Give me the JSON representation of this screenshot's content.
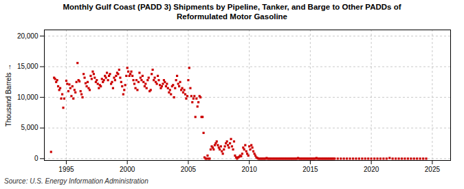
{
  "chart_data": {
    "type": "scatter",
    "title": "Monthly Gulf Coast (PADD 3) Shipments by Pipeline, Tanker, and Barge to Other PADDs of\nReformulated Motor Gasoline",
    "ylabel": "Thousand Barrels",
    "annotations": [
      "Source: U.S. Energy Information Administration"
    ],
    "color": "#cc0000",
    "marker": "square",
    "grid": true,
    "xlim": [
      1993.2,
      2026.5
    ],
    "ylim": [
      -300,
      21000
    ],
    "xticks": [
      1995,
      2000,
      2005,
      2010,
      2015,
      2020,
      2025
    ],
    "yticks": [
      0,
      {
        "value": 5000,
        "label": "5,000"
      },
      {
        "value": 10000,
        "label": "10,000"
      },
      {
        "value": 15000,
        "label": "15,000"
      },
      {
        "value": 20000,
        "label": "20,000"
      }
    ],
    "x": [
      1993.75,
      1994.0,
      1994.08,
      1994.17,
      1994.25,
      1994.33,
      1994.42,
      1994.5,
      1994.58,
      1994.67,
      1994.75,
      1994.83,
      1995.0,
      1995.08,
      1995.17,
      1995.25,
      1995.33,
      1995.42,
      1995.5,
      1995.58,
      1995.67,
      1995.75,
      1995.83,
      1995.92,
      1996.0,
      1996.08,
      1996.17,
      1996.25,
      1996.33,
      1996.42,
      1996.5,
      1996.58,
      1996.67,
      1996.75,
      1996.83,
      1996.92,
      1997.0,
      1997.08,
      1997.17,
      1997.25,
      1997.33,
      1997.42,
      1997.5,
      1997.58,
      1997.67,
      1997.75,
      1997.83,
      1997.92,
      1998.0,
      1998.08,
      1998.17,
      1998.25,
      1998.33,
      1998.42,
      1998.5,
      1998.58,
      1998.67,
      1998.75,
      1998.83,
      1998.92,
      1999.0,
      1999.08,
      1999.17,
      1999.25,
      1999.33,
      1999.42,
      1999.5,
      1999.58,
      1999.67,
      1999.75,
      1999.83,
      1999.92,
      2000.0,
      2000.08,
      2000.17,
      2000.25,
      2000.33,
      2000.42,
      2000.5,
      2000.58,
      2000.67,
      2000.75,
      2000.83,
      2000.92,
      2001.0,
      2001.08,
      2001.17,
      2001.25,
      2001.33,
      2001.42,
      2001.5,
      2001.58,
      2001.67,
      2001.75,
      2001.83,
      2001.92,
      2002.0,
      2002.08,
      2002.17,
      2002.25,
      2002.33,
      2002.42,
      2002.5,
      2002.58,
      2002.67,
      2002.75,
      2002.83,
      2002.92,
      2003.0,
      2003.08,
      2003.17,
      2003.25,
      2003.33,
      2003.42,
      2003.5,
      2003.58,
      2003.67,
      2003.75,
      2003.83,
      2003.92,
      2004.0,
      2004.08,
      2004.17,
      2004.25,
      2004.33,
      2004.42,
      2004.5,
      2004.58,
      2004.67,
      2004.75,
      2004.83,
      2004.92,
      2005.0,
      2005.08,
      2005.17,
      2005.25,
      2005.33,
      2005.42,
      2005.5,
      2005.58,
      2005.67,
      2005.75,
      2005.83,
      2005.92,
      2006.0,
      2006.08,
      2006.17,
      2006.25,
      2006.33,
      2006.42,
      2006.5,
      2006.58,
      2006.67,
      2006.75,
      2006.83,
      2006.92,
      2007.0,
      2007.08,
      2007.17,
      2007.25,
      2007.33,
      2007.42,
      2007.5,
      2007.58,
      2007.67,
      2007.75,
      2007.83,
      2007.92,
      2008.0,
      2008.08,
      2008.17,
      2008.25,
      2008.33,
      2008.42,
      2008.5,
      2008.58,
      2008.67,
      2008.75,
      2008.83,
      2008.92,
      2009.0,
      2009.08,
      2009.17,
      2009.25,
      2009.33,
      2009.42,
      2009.5,
      2009.58,
      2009.67,
      2009.75,
      2009.83,
      2009.92,
      2010.0,
      2010.08,
      2010.17,
      2010.25,
      2010.33,
      2010.42,
      2010.5,
      2010.58,
      2010.67,
      2010.75,
      2010.83,
      2010.92,
      2011.0,
      2011.08,
      2011.17,
      2011.25,
      2011.33,
      2011.42,
      2011.5,
      2011.58,
      2011.67,
      2011.75,
      2011.83,
      2011.92,
      2012.0,
      2012.08,
      2012.17,
      2012.25,
      2012.33,
      2012.42,
      2012.5,
      2012.58,
      2012.67,
      2012.75,
      2012.83,
      2012.92,
      2013.0,
      2013.08,
      2013.17,
      2013.25,
      2013.33,
      2013.42,
      2013.5,
      2013.58,
      2013.67,
      2013.75,
      2013.83,
      2013.92,
      2014.0,
      2014.08,
      2014.17,
      2014.25,
      2014.33,
      2014.42,
      2014.5,
      2014.58,
      2014.67,
      2014.75,
      2014.83,
      2014.92,
      2015.0,
      2015.08,
      2015.17,
      2015.25,
      2015.33,
      2015.42,
      2015.5,
      2015.58,
      2015.67,
      2015.75,
      2015.83,
      2015.92,
      2016.0,
      2016.08,
      2016.17,
      2016.25,
      2016.33,
      2016.42,
      2016.5,
      2016.58,
      2016.67,
      2016.75,
      2016.83,
      2016.92,
      2017.0,
      2017.25,
      2017.5,
      2017.75,
      2018.0,
      2018.25,
      2018.5,
      2018.75,
      2019.0,
      2019.25,
      2019.5,
      2019.75,
      2020.0,
      2020.25,
      2020.5,
      2020.75,
      2021.0,
      2021.25,
      2021.5,
      2021.75,
      2022.0,
      2022.25,
      2022.5,
      2022.75,
      2023.0,
      2023.25,
      2023.5,
      2023.75,
      2024.0,
      2024.25,
      2024.5
    ],
    "values": [
      1100,
      13200,
      13000,
      12500,
      12800,
      11800,
      11200,
      11500,
      9800,
      10500,
      8300,
      9800,
      12700,
      12200,
      11000,
      12100,
      11500,
      10200,
      11800,
      9800,
      11200,
      10800,
      12500,
      15600,
      12800,
      12600,
      11000,
      10500,
      10000,
      13800,
      13200,
      12300,
      11800,
      12500,
      11500,
      11200,
      13500,
      13000,
      14200,
      13800,
      13200,
      12500,
      12800,
      12200,
      11500,
      12000,
      11800,
      13000,
      12500,
      12800,
      13500,
      13200,
      14000,
      12800,
      13500,
      13800,
      12200,
      12500,
      11500,
      13200,
      12800,
      13500,
      14000,
      13800,
      14500,
      13200,
      12500,
      11800,
      10500,
      11200,
      12000,
      13500,
      14800,
      14200,
      13500,
      13800,
      14200,
      13500,
      12800,
      12200,
      11500,
      12800,
      11200,
      12500,
      14000,
      13200,
      12800,
      13500,
      12500,
      11800,
      12200,
      11500,
      12800,
      13200,
      11000,
      11200,
      13800,
      14500,
      12800,
      13200,
      12500,
      12200,
      13500,
      12800,
      12000,
      11500,
      11800,
      12200,
      12800,
      12500,
      11800,
      12200,
      11500,
      10800,
      11200,
      10500,
      11800,
      12000,
      10000,
      11500,
      12800,
      13500,
      12200,
      11800,
      12500,
      11200,
      11500,
      10800,
      11200,
      10500,
      9800,
      10200,
      12800,
      14800,
      11500,
      10200,
      9200,
      9800,
      10200,
      6800,
      9800,
      8500,
      9200,
      10200,
      10000,
      6800,
      6800,
      4200,
      200,
      0,
      0,
      500,
      0,
      0,
      1500,
      2000,
      1800,
      1500,
      2200,
      2500,
      2800,
      2200,
      1800,
      1500,
      2000,
      1200,
      800,
      1500,
      2000,
      2500,
      2800,
      2200,
      1800,
      2500,
      3200,
      2000,
      1500,
      2800,
      500,
      200,
      0,
      200,
      300,
      500,
      400,
      800,
      1800,
      1500,
      2200,
      1200,
      800,
      500,
      2000,
      1500,
      2200,
      1800,
      1200,
      800,
      500,
      200,
      100,
      0,
      0,
      0,
      0,
      0,
      0,
      0,
      0,
      100,
      0,
      0,
      0,
      0,
      0,
      0,
      0,
      0,
      0,
      0,
      0,
      0,
      0,
      0,
      0,
      0,
      0,
      0,
      0,
      0,
      0,
      0,
      0,
      0,
      0,
      0,
      0,
      0,
      0,
      0,
      100,
      0,
      0,
      0,
      0,
      0,
      0,
      0,
      0,
      0,
      0,
      0,
      0,
      0,
      0,
      0,
      0,
      0,
      100,
      0,
      0,
      0,
      0,
      0,
      0,
      0,
      0,
      0,
      0,
      0,
      0,
      0,
      0,
      0,
      0,
      0,
      0,
      0,
      0,
      0,
      0,
      0,
      0,
      0,
      0,
      0,
      0,
      0,
      0,
      0,
      0,
      0,
      0,
      0,
      100,
      0,
      0,
      0,
      0,
      0,
      0,
      0,
      0,
      0,
      0,
      0,
      0
    ]
  }
}
